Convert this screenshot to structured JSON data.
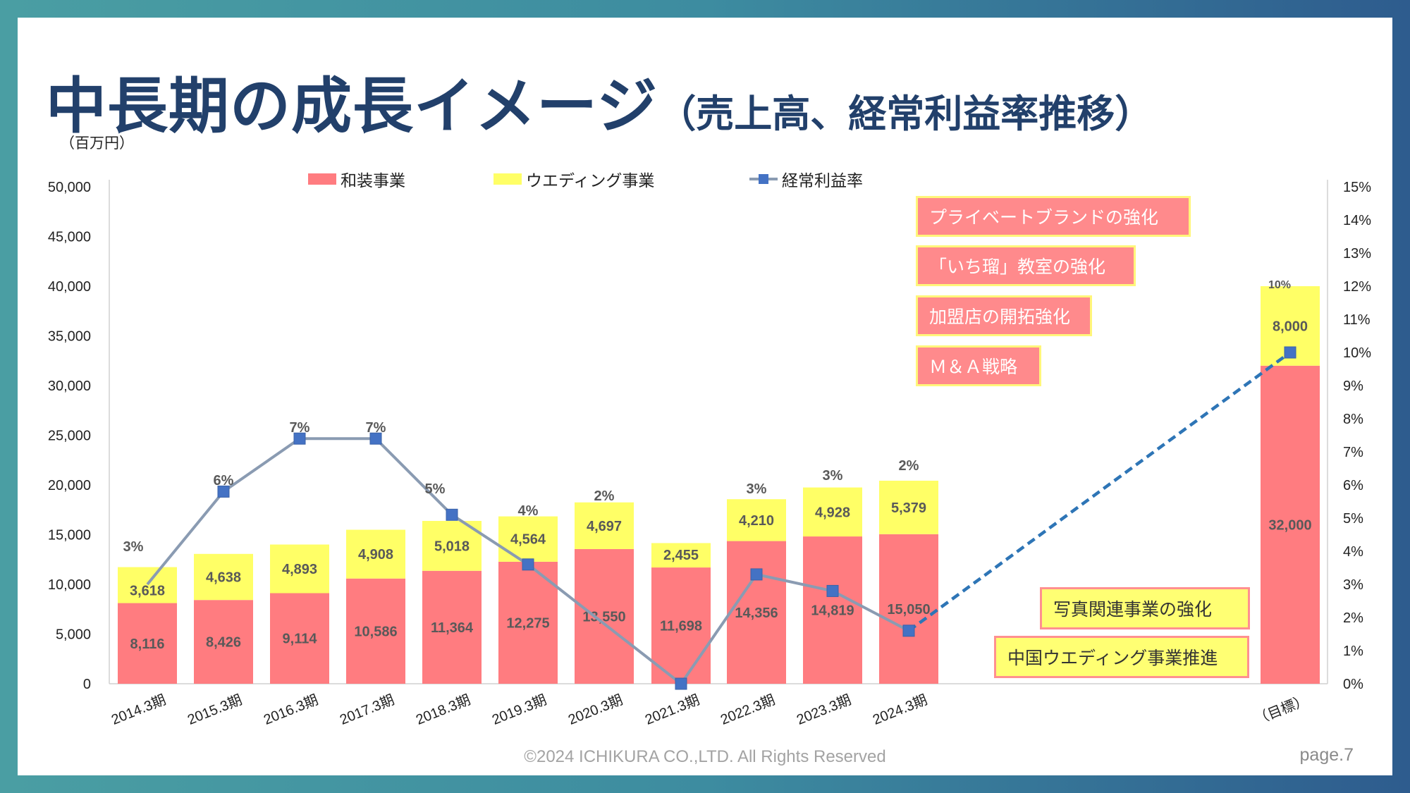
{
  "title": {
    "main": "中長期の成長イメージ",
    "sub": "（売上高、経常利益率推移）"
  },
  "unit_label": "（百万円）",
  "legend": {
    "wasou": "和装事業",
    "wedding": "ウエディング事業",
    "ratio": "経常利益率"
  },
  "colors": {
    "wasou": "#ff7c80",
    "wedding": "#ffff66",
    "line": "#8a9bb2",
    "marker": "#4472c4",
    "forecast": "#2e75b6"
  },
  "strategy_boxes": [
    "プライベートブランドの強化",
    "「いち瑠」教室の強化",
    "加盟店の開拓強化",
    "Ｍ＆Ａ戦略"
  ],
  "photo_boxes": [
    "写真関連事業の強化",
    "中国ウエディング事業推進"
  ],
  "footer": "©2024 ICHIKURA CO.,LTD. All Rights Reserved",
  "page_number": "page.7",
  "chart_data": {
    "type": "bar",
    "stacked": true,
    "categories": [
      "2014.3期",
      "2015.3期",
      "2016.3期",
      "2017.3期",
      "2018.3期",
      "2019.3期",
      "2020.3期",
      "2021.3期",
      "2022.3期",
      "2023.3期",
      "2024.3期",
      "（目標）"
    ],
    "series": [
      {
        "name": "和装事業",
        "values": [
          8116,
          8426,
          9114,
          10586,
          11364,
          12275,
          13550,
          11698,
          14356,
          14819,
          15050,
          32000
        ],
        "labels": [
          "8,116",
          "8,426",
          "9,114",
          "10,586",
          "11,364",
          "12,275",
          "13,550",
          "11,698",
          "14,356",
          "14,819",
          "15,050",
          "32,000"
        ]
      },
      {
        "name": "ウエディング事業",
        "values": [
          3618,
          4638,
          4893,
          4908,
          5018,
          4564,
          4697,
          2455,
          4210,
          4928,
          5379,
          8000
        ],
        "labels": [
          "3,618",
          "4,638",
          "4,893",
          "4,908",
          "5,018",
          "4,564",
          "4,697",
          "2,455",
          "4,210",
          "4,928",
          "5,379",
          "8,000"
        ]
      },
      {
        "name": "経常利益率",
        "axis": "right",
        "type": "line",
        "values": [
          3.0,
          5.8,
          7.4,
          7.4,
          5.1,
          3.6,
          null,
          0.0,
          3.3,
          2.8,
          1.6,
          10.0
        ],
        "labels": [
          "3%",
          "6%",
          "7%",
          "7%",
          "5%",
          "4%",
          "2%",
          "",
          "3%",
          "3%",
          "2%",
          "10%"
        ],
        "forecast_segment": [
          "2024.3期",
          "（目標）"
        ]
      }
    ],
    "y_left": {
      "min": 0,
      "max": 50000,
      "ticks": [
        "0",
        "5,000",
        "10,000",
        "15,000",
        "20,000",
        "25,000",
        "30,000",
        "35,000",
        "40,000",
        "45,000",
        "50,000"
      ]
    },
    "y_right": {
      "min": 0,
      "max": 15,
      "ticks": [
        "0%",
        "1%",
        "2%",
        "3%",
        "4%",
        "5%",
        "6%",
        "7%",
        "8%",
        "9%",
        "10%",
        "11%",
        "12%",
        "13%",
        "14%",
        "15%"
      ]
    }
  }
}
